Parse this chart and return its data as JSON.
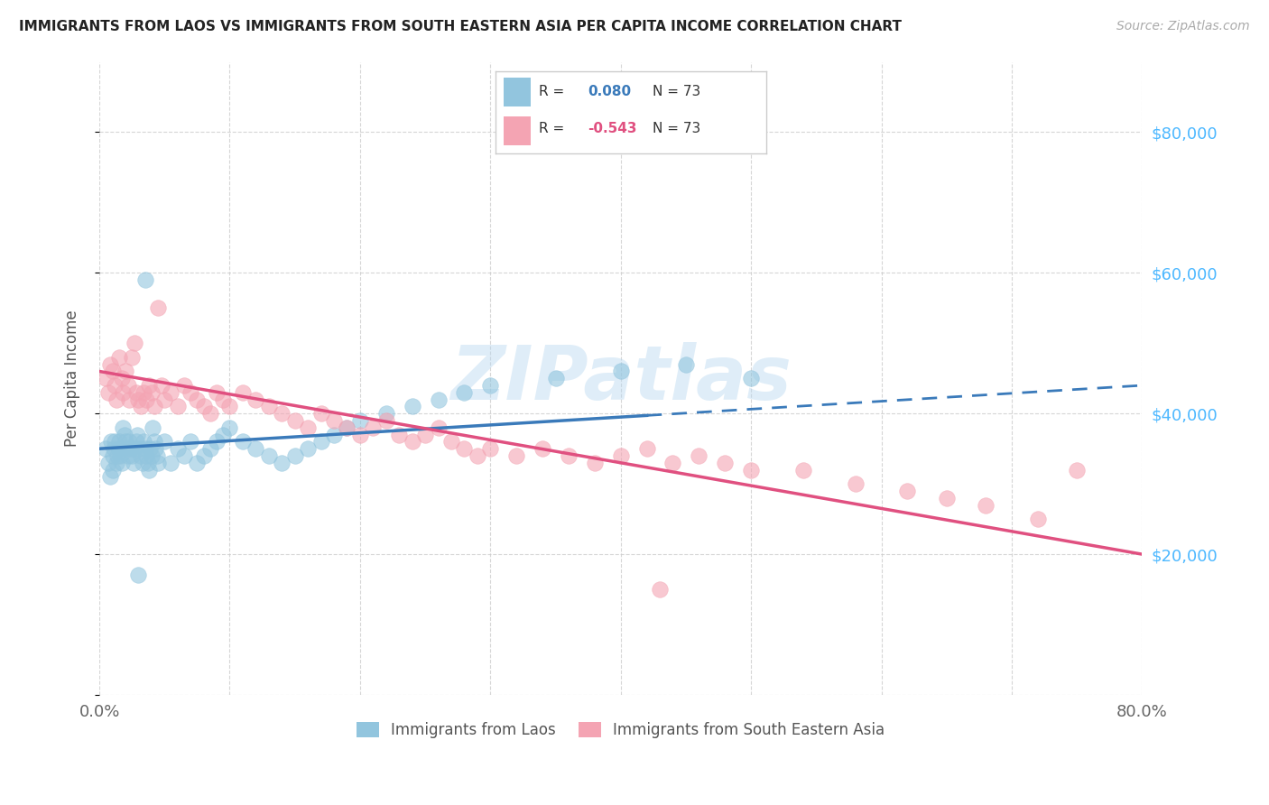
{
  "title": "IMMIGRANTS FROM LAOS VS IMMIGRANTS FROM SOUTH EASTERN ASIA PER CAPITA INCOME CORRELATION CHART",
  "source": "Source: ZipAtlas.com",
  "ylabel": "Per Capita Income",
  "R_blue": 0.08,
  "N_blue": 73,
  "R_pink": -0.543,
  "N_pink": 73,
  "color_blue": "#92c5de",
  "color_pink": "#f4a4b3",
  "line_blue": "#3a7aba",
  "line_pink": "#e05080",
  "watermark": "ZIPatlas",
  "legend_label_blue": "Immigrants from Laos",
  "legend_label_pink": "Immigrants from South Eastern Asia",
  "blue_x": [
    0.005,
    0.007,
    0.008,
    0.009,
    0.01,
    0.01,
    0.011,
    0.012,
    0.013,
    0.014,
    0.015,
    0.015,
    0.016,
    0.017,
    0.018,
    0.019,
    0.02,
    0.021,
    0.022,
    0.023,
    0.024,
    0.025,
    0.026,
    0.027,
    0.028,
    0.029,
    0.03,
    0.031,
    0.032,
    0.033,
    0.034,
    0.035,
    0.036,
    0.037,
    0.038,
    0.039,
    0.04,
    0.041,
    0.042,
    0.043,
    0.044,
    0.045,
    0.05,
    0.055,
    0.06,
    0.065,
    0.07,
    0.075,
    0.08,
    0.085,
    0.09,
    0.095,
    0.1,
    0.11,
    0.12,
    0.13,
    0.14,
    0.15,
    0.16,
    0.17,
    0.18,
    0.19,
    0.2,
    0.22,
    0.24,
    0.26,
    0.28,
    0.3,
    0.35,
    0.4,
    0.45,
    0.5,
    0.035
  ],
  "blue_y": [
    35000,
    33000,
    31000,
    36000,
    34000,
    32000,
    35000,
    36000,
    33000,
    34000,
    36000,
    35000,
    34000,
    33000,
    38000,
    37000,
    36000,
    35000,
    34000,
    36000,
    35000,
    34000,
    33000,
    35000,
    36000,
    37000,
    17000,
    35000,
    34000,
    33000,
    36000,
    35000,
    34000,
    33000,
    32000,
    35000,
    34000,
    38000,
    36000,
    35000,
    34000,
    33000,
    36000,
    33000,
    35000,
    34000,
    36000,
    33000,
    34000,
    35000,
    36000,
    37000,
    38000,
    36000,
    35000,
    34000,
    33000,
    34000,
    35000,
    36000,
    37000,
    38000,
    39000,
    40000,
    41000,
    42000,
    43000,
    44000,
    45000,
    46000,
    47000,
    45000,
    59000
  ],
  "pink_x": [
    0.005,
    0.007,
    0.008,
    0.01,
    0.012,
    0.013,
    0.015,
    0.017,
    0.018,
    0.02,
    0.022,
    0.023,
    0.025,
    0.027,
    0.028,
    0.03,
    0.032,
    0.034,
    0.036,
    0.038,
    0.04,
    0.042,
    0.045,
    0.048,
    0.05,
    0.055,
    0.06,
    0.065,
    0.07,
    0.075,
    0.08,
    0.085,
    0.09,
    0.095,
    0.1,
    0.11,
    0.12,
    0.13,
    0.14,
    0.15,
    0.16,
    0.17,
    0.18,
    0.19,
    0.2,
    0.21,
    0.22,
    0.23,
    0.24,
    0.25,
    0.26,
    0.27,
    0.28,
    0.29,
    0.3,
    0.32,
    0.34,
    0.36,
    0.38,
    0.4,
    0.42,
    0.44,
    0.46,
    0.48,
    0.5,
    0.54,
    0.58,
    0.62,
    0.65,
    0.68,
    0.72,
    0.75,
    0.43
  ],
  "pink_y": [
    45000,
    43000,
    47000,
    46000,
    44000,
    42000,
    48000,
    45000,
    43000,
    46000,
    44000,
    42000,
    48000,
    50000,
    43000,
    42000,
    41000,
    43000,
    42000,
    44000,
    43000,
    41000,
    55000,
    44000,
    42000,
    43000,
    41000,
    44000,
    43000,
    42000,
    41000,
    40000,
    43000,
    42000,
    41000,
    43000,
    42000,
    41000,
    40000,
    39000,
    38000,
    40000,
    39000,
    38000,
    37000,
    38000,
    39000,
    37000,
    36000,
    37000,
    38000,
    36000,
    35000,
    34000,
    35000,
    34000,
    35000,
    34000,
    33000,
    34000,
    35000,
    33000,
    34000,
    33000,
    32000,
    32000,
    30000,
    29000,
    28000,
    27000,
    25000,
    32000,
    15000
  ]
}
